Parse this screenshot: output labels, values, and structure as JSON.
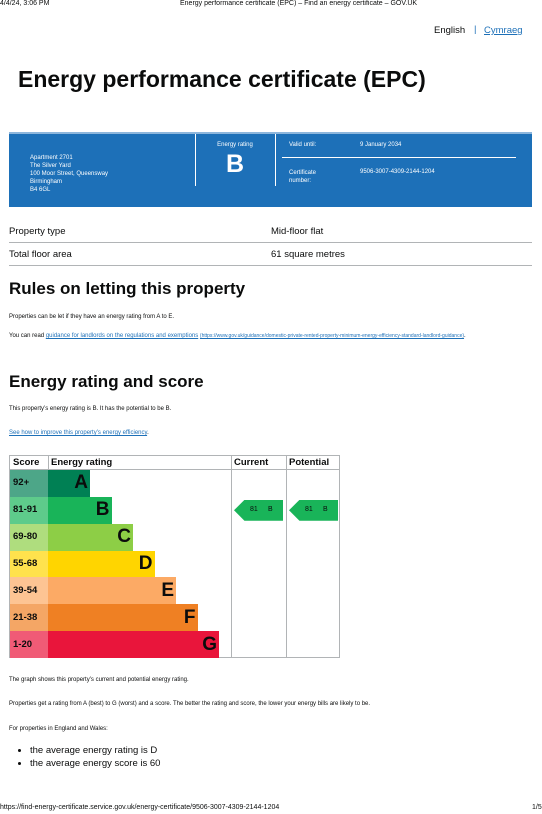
{
  "print_header": {
    "date": "4/4/24, 3:06 PM",
    "title": "Energy performance certificate (EPC) – Find an energy certificate – GOV.UK"
  },
  "language": {
    "english": "English",
    "cymraeg": "Cymraeg"
  },
  "title": "Energy performance certificate (EPC)",
  "summary": {
    "address": [
      "Apartment 2701",
      "The Silver Yard",
      "100 Moor Street, Queensway",
      "Birmingham",
      "B4 6GL"
    ],
    "rating_label": "Energy rating",
    "rating": "B",
    "valid_until_label": "Valid until:",
    "valid_until": "9 January 2034",
    "certificate_label": "Certificate number:",
    "certificate_number": "9506-3007-4309-2144-1204"
  },
  "property": {
    "rows": [
      [
        "Property type",
        "Mid-floor flat"
      ],
      [
        "Total floor area",
        "61 square metres"
      ]
    ]
  },
  "rules": {
    "heading": "Rules on letting this property",
    "text": "Properties can be let if they have an energy rating from A to E.",
    "guidance_prefix": "You can read ",
    "guidance_link": "guidance for landlords on the regulations and exemptions",
    "guidance_url": "(https://www.gov.uk/guidance/domestic-private-rented-property-minimum-energy-efficiency-standard-landlord-guidance)",
    "guidance_suffix": "."
  },
  "rating_section": {
    "heading": "Energy rating and score",
    "text": "This property’s energy rating is B. It has the potential to be B.",
    "link": "See how to improve this property’s energy efficiency",
    "link_suffix": "."
  },
  "epc": {
    "headers": [
      "Score",
      "Energy rating",
      "Current",
      "Potential"
    ],
    "bands": [
      {
        "score": "92+",
        "letter": "A",
        "color": "#008054",
        "tint": "#4da688"
      },
      {
        "score": "81-91",
        "letter": "B",
        "color": "#19b459",
        "tint": "#5ecb8b"
      },
      {
        "score": "69-80",
        "letter": "C",
        "color": "#8dce46",
        "tint": "#afdd7e"
      },
      {
        "score": "55-68",
        "letter": "D",
        "color": "#ffd500",
        "tint": "#ffe24d"
      },
      {
        "score": "39-54",
        "letter": "E",
        "color": "#fcaa65",
        "tint": "#fdc493"
      },
      {
        "score": "21-38",
        "letter": "F",
        "color": "#ef8023",
        "tint": "#f4a665"
      },
      {
        "score": "1-20",
        "letter": "G",
        "color": "#e9153b",
        "tint": "#f05b76"
      }
    ],
    "current": {
      "value": 81,
      "letter": "B"
    },
    "potential": {
      "value": 81,
      "letter": "B"
    }
  },
  "notes": {
    "graph": "The graph shows this property’s current and potential energy rating.",
    "explain": "Properties get a rating from A (best) to G (worst) and a score. The better the rating and score, the lower your energy bills are likely to be.",
    "average_intro": "For properties in England and Wales:",
    "averages": [
      "the average energy rating is D",
      "the average energy score is 60"
    ]
  },
  "footer": {
    "url": "https://find-energy-certificate.service.gov.uk/energy-certificate/9506-3007-4309-2144-1204",
    "page": "1/5"
  }
}
